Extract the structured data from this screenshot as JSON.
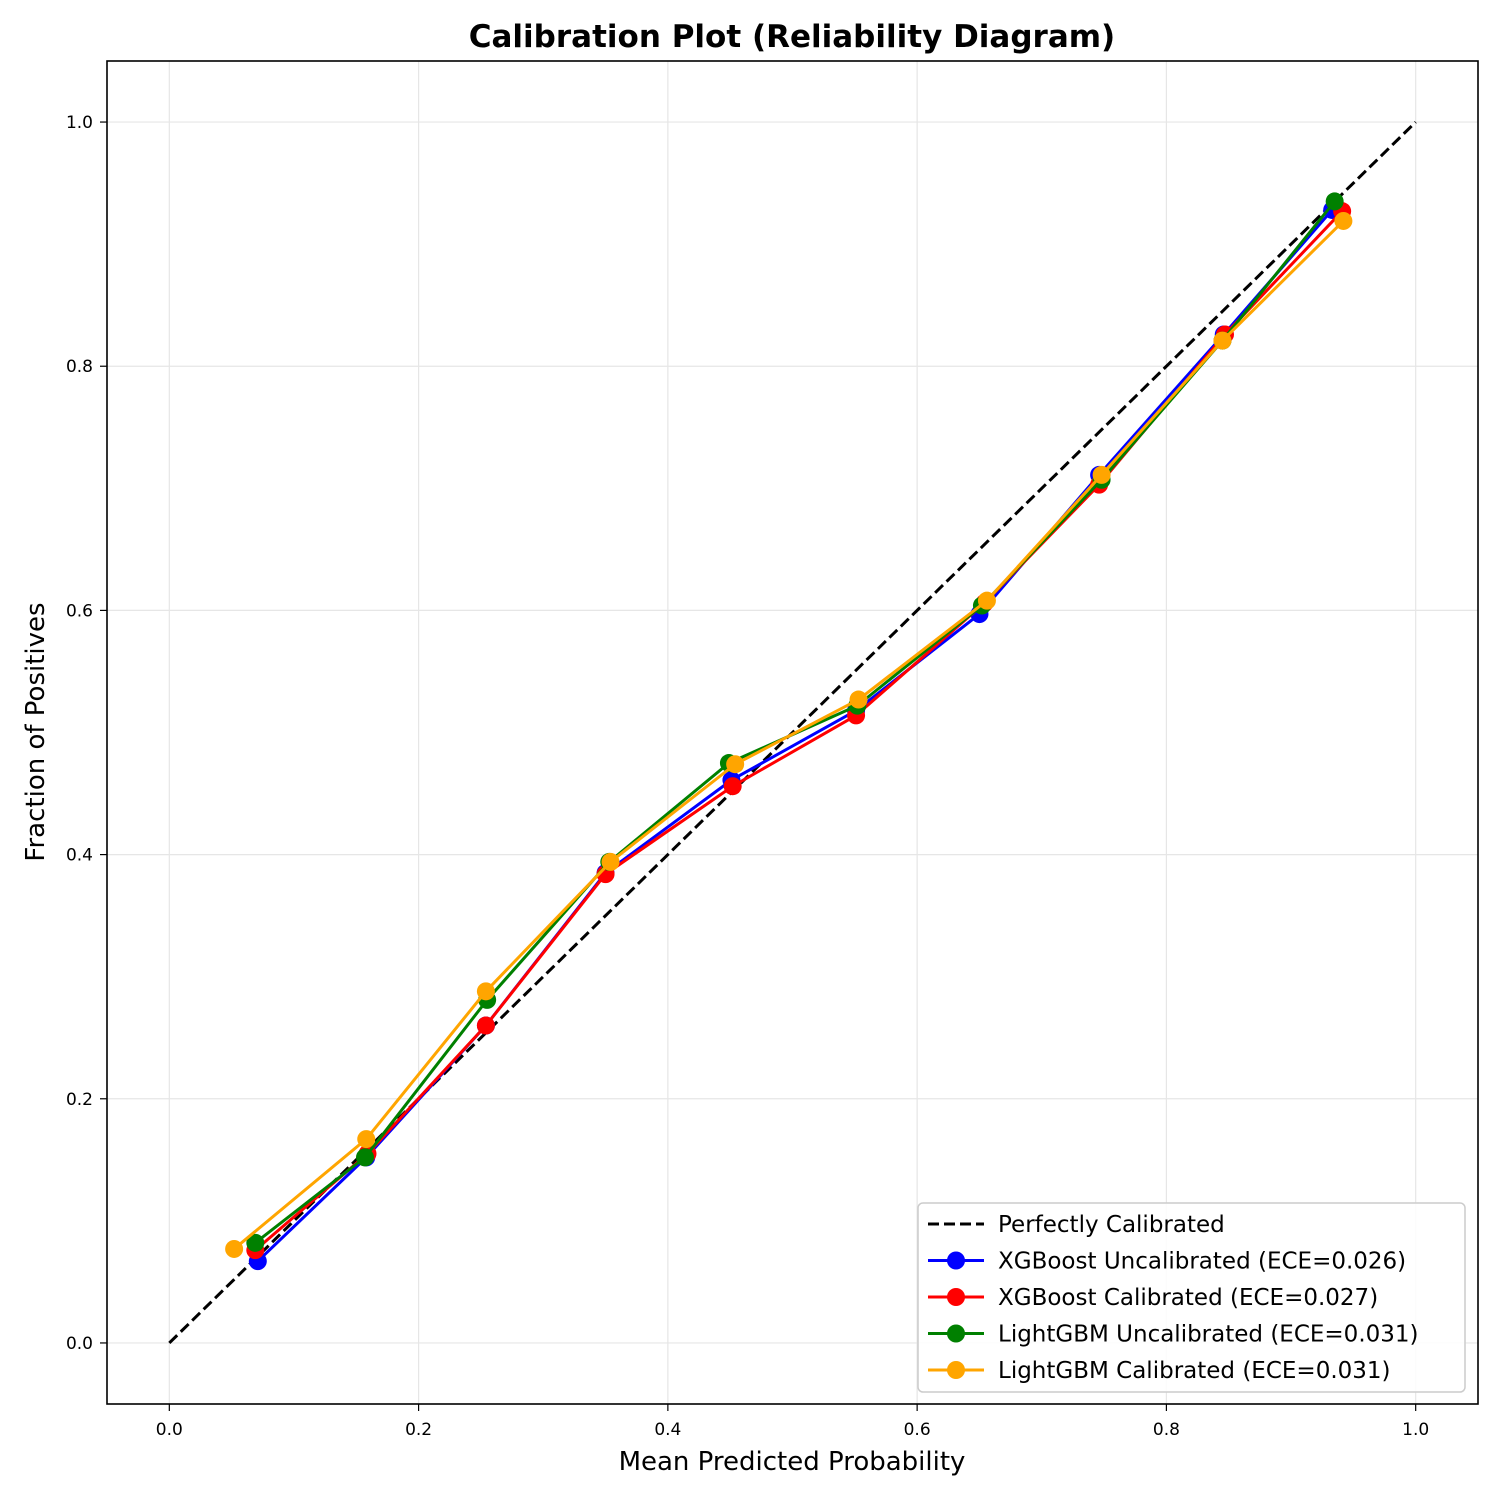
{
  "chart_data": {
    "type": "line",
    "title": "Calibration Plot (Reliability Diagram)",
    "xlabel": "Mean Predicted Probability",
    "ylabel": "Fraction of Positives",
    "xlim": [
      -0.05,
      1.05
    ],
    "ylim": [
      -0.05,
      1.05
    ],
    "xticks": [
      0.0,
      0.2,
      0.4,
      0.6,
      0.8,
      1.0
    ],
    "yticks": [
      0.0,
      0.2,
      0.4,
      0.6,
      0.8,
      1.0
    ],
    "xtick_labels": [
      "0.0",
      "0.2",
      "0.4",
      "0.6",
      "0.8",
      "1.0"
    ],
    "ytick_labels": [
      "0.0",
      "0.2",
      "0.4",
      "0.6",
      "0.8",
      "1.0"
    ],
    "grid": true,
    "legend_position": "lower-right",
    "reference": {
      "name": "Perfectly Calibrated",
      "x": [
        0.0,
        1.0
      ],
      "y": [
        0.0,
        1.0
      ],
      "color": "#000000",
      "style": "dashed"
    },
    "series": [
      {
        "name": "XGBoost Uncalibrated (ECE=0.026)",
        "color": "#0000ff",
        "x": [
          0.071,
          0.158,
          0.254,
          0.35,
          0.451,
          0.551,
          0.65,
          0.746,
          0.846,
          0.933
        ],
        "y": [
          0.067,
          0.152,
          0.26,
          0.385,
          0.461,
          0.518,
          0.597,
          0.711,
          0.826,
          0.928
        ]
      },
      {
        "name": "XGBoost Calibrated (ECE=0.027)",
        "color": "#ff0000",
        "x": [
          0.069,
          0.159,
          0.254,
          0.35,
          0.452,
          0.551,
          0.654,
          0.746,
          0.847,
          0.941
        ],
        "y": [
          0.076,
          0.155,
          0.26,
          0.384,
          0.456,
          0.514,
          0.606,
          0.703,
          0.826,
          0.927
        ]
      },
      {
        "name": "LightGBM Uncalibrated (ECE=0.031)",
        "color": "#008000",
        "x": [
          0.069,
          0.157,
          0.255,
          0.353,
          0.449,
          0.552,
          0.652,
          0.748,
          0.845,
          0.935
        ],
        "y": [
          0.082,
          0.152,
          0.281,
          0.394,
          0.475,
          0.522,
          0.604,
          0.707,
          0.821,
          0.935
        ]
      },
      {
        "name": "LightGBM Calibrated (ECE=0.031)",
        "color": "#ffa500",
        "x": [
          0.052,
          0.158,
          0.254,
          0.354,
          0.454,
          0.553,
          0.656,
          0.748,
          0.845,
          0.942
        ],
        "y": [
          0.077,
          0.167,
          0.288,
          0.394,
          0.474,
          0.527,
          0.608,
          0.711,
          0.821,
          0.919
        ]
      }
    ]
  }
}
